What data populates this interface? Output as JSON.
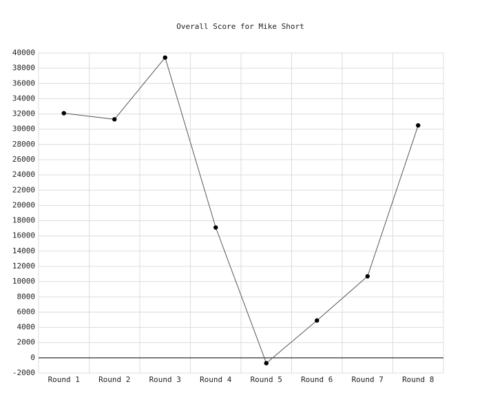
{
  "chart_data": {
    "type": "line",
    "title": "Overall Score for Mike Short",
    "categories": [
      "Round 1",
      "Round 2",
      "Round 3",
      "Round 4",
      "Round 5",
      "Round 6",
      "Round 7",
      "Round 8"
    ],
    "series": [
      {
        "name": "Mike Short",
        "color": "#000000",
        "values": [
          32100,
          31300,
          39400,
          17100,
          -700,
          4900,
          10700,
          30500
        ]
      }
    ],
    "ylim": [
      -2000,
      40000
    ],
    "yticks": [
      -2000,
      0,
      2000,
      4000,
      6000,
      8000,
      10000,
      12000,
      14000,
      16000,
      18000,
      20000,
      22000,
      24000,
      26000,
      28000,
      30000,
      32000,
      34000,
      36000,
      38000,
      40000
    ],
    "grid": true
  }
}
